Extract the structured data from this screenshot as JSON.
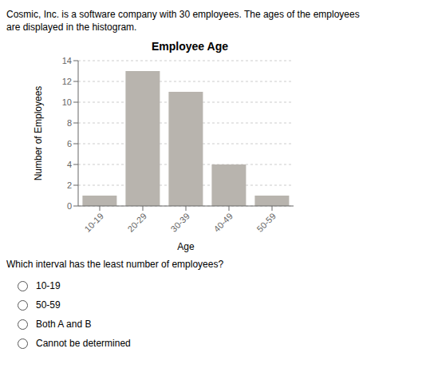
{
  "chart_data": {
    "type": "bar",
    "title": "Employee Age",
    "xlabel": "Age",
    "ylabel": "Number of Employees",
    "categories": [
      "10-19",
      "20-29",
      "30-39",
      "40-49",
      "50-59"
    ],
    "values": [
      1,
      13,
      11,
      4,
      1
    ],
    "color": "#b8b4ae",
    "ylim": [
      0,
      14
    ],
    "yticks": [
      0,
      2,
      4,
      6,
      8,
      10,
      12,
      14
    ],
    "grid": true,
    "annotations": {
      "intro": [
        "Cosmic, Inc. is a software company with 30 employees. The ages of the employees",
        "are displayed in the histogram."
      ],
      "question": "Which interval has the least number of employees?",
      "choices": [
        "10-19",
        "50-59",
        "Both A and B",
        "Cannot be determined"
      ]
    }
  }
}
